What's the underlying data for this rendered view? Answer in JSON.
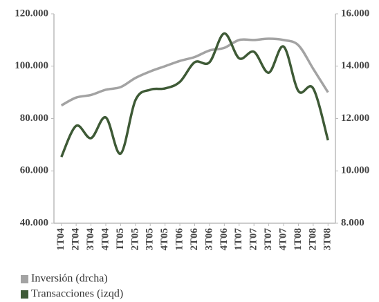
{
  "chart_data": {
    "type": "line",
    "categories": [
      "1T04",
      "2T04",
      "3T04",
      "4T04",
      "IT05",
      "2T05",
      "3T05",
      "4T05",
      "1T06",
      "2T06",
      "3T06",
      "4T06",
      "1T07",
      "2T07",
      "3T07",
      "4T07",
      "1T08",
      "2T08",
      "3T08"
    ],
    "series": [
      {
        "name": "Inversión (drcha)",
        "color": "#a3a3a3",
        "axis": "y2",
        "values": [
          12500,
          12800,
          12900,
          13100,
          13200,
          13550,
          13800,
          14000,
          14200,
          14350,
          14600,
          14700,
          15000,
          15000,
          15050,
          15000,
          14800,
          13900,
          13000
        ]
      },
      {
        "name": "Transacciones (izqd)",
        "color": "#3e5a36",
        "values": [
          65300,
          77200,
          72500,
          80400,
          66600,
          87000,
          91000,
          91500,
          94000,
          101500,
          101500,
          112500,
          103000,
          105500,
          97500,
          107500,
          90500,
          91500,
          71700
        ]
      }
    ],
    "ylim": [
      40000,
      120000
    ],
    "yticks": [
      {
        "value": 40000,
        "label": "40.000"
      },
      {
        "value": 60000,
        "label": "60.000"
      },
      {
        "value": 80000,
        "label": "80.000"
      },
      {
        "value": 100000,
        "label": "100.000"
      },
      {
        "value": 120000,
        "label": "120.000"
      }
    ],
    "y2lim": [
      8000,
      16000
    ],
    "y2ticks": [
      {
        "value": 8000,
        "label": "8.000"
      },
      {
        "value": 10000,
        "label": "10.000"
      },
      {
        "value": 12000,
        "label": "12.000"
      },
      {
        "value": 14000,
        "label": "14.000"
      },
      {
        "value": 16000,
        "label": "16.000"
      }
    ],
    "legend": "bottom-left"
  }
}
